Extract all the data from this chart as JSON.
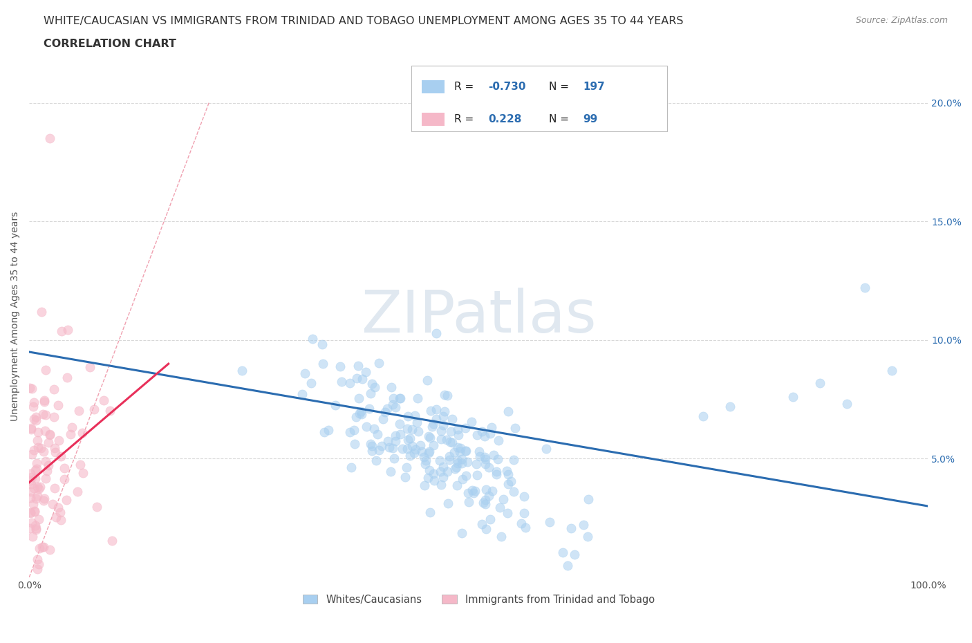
{
  "title_line1": "WHITE/CAUCASIAN VS IMMIGRANTS FROM TRINIDAD AND TOBAGO UNEMPLOYMENT AMONG AGES 35 TO 44 YEARS",
  "title_line2": "CORRELATION CHART",
  "source_text": "Source: ZipAtlas.com",
  "ylabel": "Unemployment Among Ages 35 to 44 years",
  "xlim": [
    0.0,
    1.0
  ],
  "ylim": [
    0.0,
    0.22
  ],
  "x_ticks": [
    0.0,
    0.1,
    0.2,
    0.3,
    0.4,
    0.5,
    0.6,
    0.7,
    0.8,
    0.9,
    1.0
  ],
  "y_ticks": [
    0.0,
    0.05,
    0.1,
    0.15,
    0.2
  ],
  "blue_color": "#a8cff0",
  "pink_color": "#f5b8c8",
  "blue_line_color": "#2b6cb0",
  "pink_line_color": "#e8305a",
  "diagonal_color": "#f0a0b0",
  "R_blue": -0.73,
  "N_blue": 197,
  "R_pink": 0.228,
  "N_pink": 99,
  "legend_blue_label": "Whites/Caucasians",
  "legend_pink_label": "Immigrants from Trinidad and Tobago",
  "watermark": "ZIPatlas",
  "title_fontsize": 11.5,
  "axis_label_fontsize": 10,
  "tick_fontsize": 10,
  "source_fontsize": 9,
  "watermark_color": "#e0e8f0",
  "right_tick_color": "#2b6cb0",
  "grid_color": "#d8d8d8"
}
